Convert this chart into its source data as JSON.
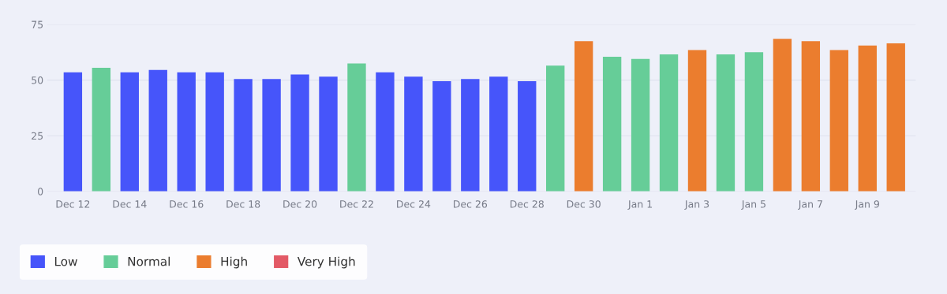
{
  "chart_data": {
    "type": "bar",
    "stacked": true,
    "categories": [
      "Dec 12",
      null,
      "Dec 14",
      null,
      "Dec 16",
      null,
      "Dec 18",
      null,
      "Dec 20",
      null,
      "Dec 22",
      null,
      "Dec 24",
      null,
      "Dec 26",
      null,
      "Dec 28",
      null,
      "Dec 30",
      null,
      "Jan 1",
      null,
      "Jan 3",
      null,
      "Jan 5",
      null,
      "Jan 7",
      null,
      "Jan 9",
      null
    ],
    "series": [
      {
        "name": "Low",
        "color": "#4655fa",
        "values": [
          53.5,
          null,
          53.5,
          54.5,
          53.5,
          53.5,
          50.5,
          50.5,
          52.5,
          51.5,
          null,
          53.5,
          51.5,
          49.5,
          50.5,
          51.5,
          49.5,
          null,
          null,
          null,
          null,
          null,
          null,
          null,
          null,
          null,
          null,
          null,
          null,
          null
        ]
      },
      {
        "name": "Normal",
        "color": "#66cd98",
        "values": [
          null,
          55.5,
          null,
          null,
          null,
          null,
          null,
          null,
          null,
          null,
          57.5,
          null,
          null,
          null,
          null,
          null,
          null,
          56.5,
          null,
          60.5,
          59.5,
          61.5,
          null,
          61.5,
          62.5,
          null,
          null,
          null,
          null,
          null
        ]
      },
      {
        "name": "High",
        "color": "#eb7d2e",
        "values": [
          null,
          null,
          null,
          null,
          null,
          null,
          null,
          null,
          null,
          null,
          null,
          null,
          null,
          null,
          null,
          null,
          null,
          null,
          67.5,
          null,
          null,
          null,
          63.5,
          null,
          null,
          68.5,
          67.5,
          63.5,
          65.5,
          66.5
        ]
      },
      {
        "name": "Very High",
        "color": "#e35a66",
        "values": [
          null,
          null,
          null,
          null,
          null,
          null,
          null,
          null,
          null,
          null,
          null,
          null,
          null,
          null,
          null,
          null,
          null,
          null,
          null,
          null,
          null,
          null,
          null,
          null,
          null,
          null,
          null,
          null,
          null,
          null
        ]
      }
    ],
    "ylim": [
      0,
      75
    ],
    "yticks": [
      0,
      25,
      50,
      75
    ],
    "grid": "y",
    "legend": "bottom left"
  }
}
